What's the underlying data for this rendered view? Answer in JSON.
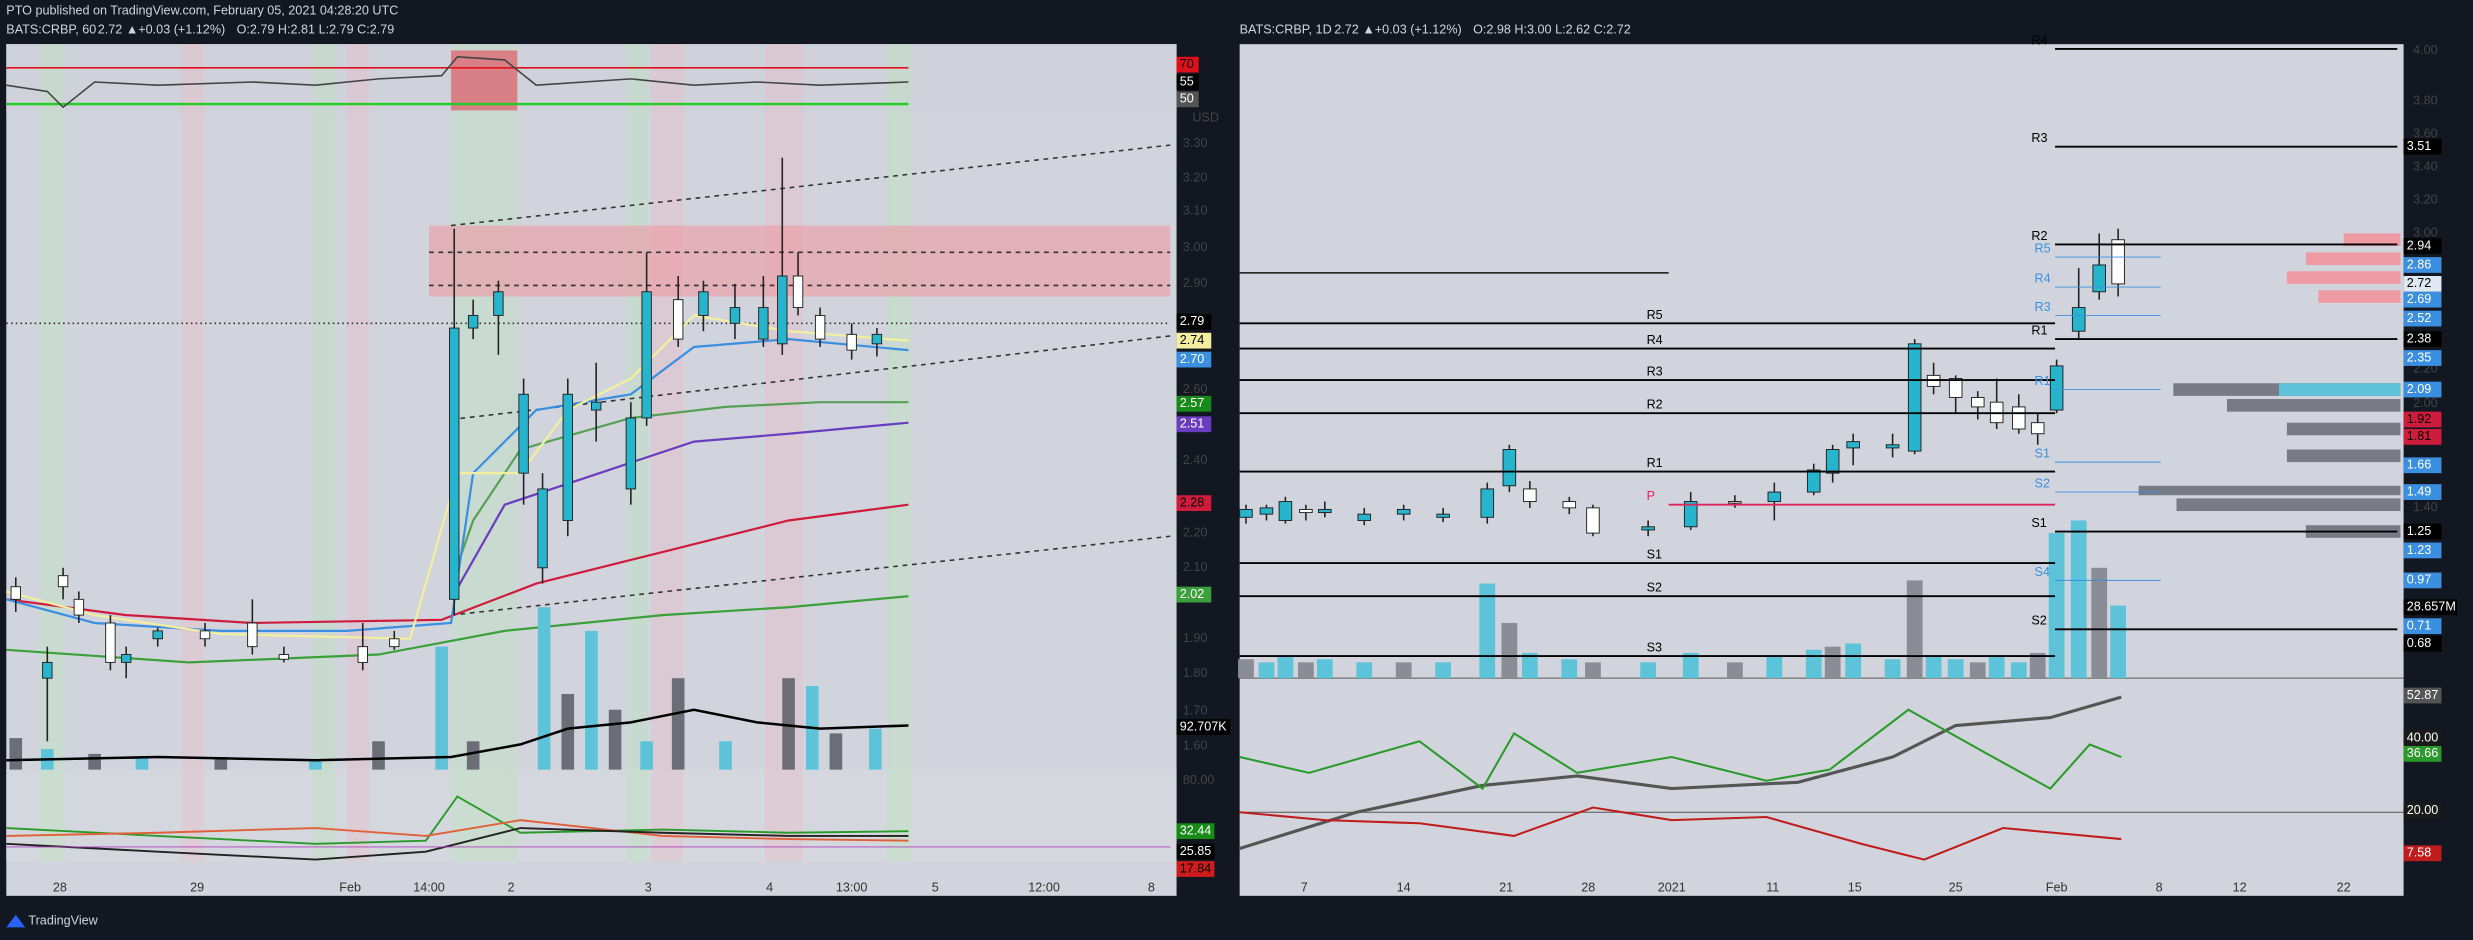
{
  "header": {
    "author_line": "PTO published on TradingView.com, February 05, 2021 04:28:20 UTC"
  },
  "left": {
    "symbol": "BATS:CRBP, 60",
    "quote": "2.72 ▲+0.03 (+1.12%)",
    "ohlc": "O:2.79 H:2.81 L:2.79 C:2.79",
    "price_axis": [
      "3.30",
      "3.20",
      "3.10",
      "3.00",
      "2.90",
      "2.60",
      "2.40",
      "2.20",
      "2.10",
      "1.90",
      "1.80",
      "1.70",
      "1.60"
    ],
    "currency": "USD",
    "rsi_badges": [
      {
        "label": "70",
        "color": "#e0101a"
      },
      {
        "label": "55",
        "color": "#000000"
      },
      {
        "label": "50",
        "color": "#555555"
      }
    ],
    "price_badges": [
      {
        "label": "2.79",
        "color": "#000000"
      },
      {
        "label": "2.74",
        "color": "#f3ef9e"
      },
      {
        "label": "2.70",
        "color": "#3a8fe0"
      },
      {
        "label": "2.57",
        "color": "#178a17"
      },
      {
        "label": "2.51",
        "color": "#6a3cc0"
      },
      {
        "label": "2.28",
        "color": "#d01c3c"
      },
      {
        "label": "2.02",
        "color": "#3aa03a"
      }
    ],
    "volume_badge": "92.707K",
    "osc_axis": [
      "80.00"
    ],
    "osc_badges": [
      {
        "label": "32.44",
        "color": "#178a17"
      },
      {
        "label": "25.85",
        "color": "#000000"
      },
      {
        "label": "17.84",
        "color": "#d01c1c"
      }
    ],
    "time_axis": [
      "28",
      "29",
      "Feb",
      "14:00",
      "2",
      "3",
      "4",
      "13:00",
      "5",
      "12:00",
      "8"
    ]
  },
  "right": {
    "symbol": "BATS:CRBP, 1D",
    "quote": "2.72 ▲+0.03 (+1.12%)",
    "ohlc": "O:2.98 H:3.00 L:2.62 C:2.72",
    "price_axis": [
      "4.00",
      "3.80",
      "3.60",
      "3.40",
      "3.20",
      "3.00",
      "2.20",
      "2.00",
      "1.40"
    ],
    "price_badges": [
      {
        "label": "3.51",
        "color": "#000000"
      },
      {
        "label": "2.94",
        "color": "#000000"
      },
      {
        "label": "2.86",
        "color": "#3a8fe0"
      },
      {
        "label": "2.72",
        "color": "#dfe9f3"
      },
      {
        "label": "2.69",
        "color": "#3a8fe0"
      },
      {
        "label": "2.52",
        "color": "#3a8fe0"
      },
      {
        "label": "2.38",
        "color": "#000000"
      },
      {
        "label": "2.35",
        "color": "#3a8fe0"
      },
      {
        "label": "2.09",
        "color": "#3a8fe0"
      },
      {
        "label": "1.92",
        "color": "#d01c3c"
      },
      {
        "label": "1.81",
        "color": "#d01c3c"
      },
      {
        "label": "1.66",
        "color": "#3a8fe0"
      },
      {
        "label": "1.49",
        "color": "#3a8fe0"
      },
      {
        "label": "1.25",
        "color": "#000000"
      },
      {
        "label": "1.23",
        "color": "#3a8fe0"
      },
      {
        "label": "0.97",
        "color": "#3a8fe0"
      },
      {
        "label": "0.71",
        "color": "#3a8fe0"
      },
      {
        "label": "28.657M",
        "color": "#000000"
      },
      {
        "label": "0.68",
        "color": "#000000"
      }
    ],
    "pivots": [
      {
        "label": "R5",
        "color": "#000000"
      },
      {
        "label": "R4",
        "color": "#000000"
      },
      {
        "label": "R3",
        "color": "#000000"
      },
      {
        "label": "R2",
        "color": "#000000"
      },
      {
        "label": "R1",
        "color": "#000000"
      },
      {
        "label": "P",
        "color": "#e0245e"
      },
      {
        "label": "S1",
        "color": "#000000"
      },
      {
        "label": "S2",
        "color": "#000000"
      },
      {
        "label": "S3",
        "color": "#000000"
      },
      {
        "label": "R4",
        "color": "#000000"
      },
      {
        "label": "R3",
        "color": "#000000"
      },
      {
        "label": "R2",
        "color": "#000000"
      },
      {
        "label": "R5",
        "color": "#3a8fe0"
      },
      {
        "label": "R4",
        "color": "#3a8fe0"
      },
      {
        "label": "R3",
        "color": "#3a8fe0"
      },
      {
        "label": "R1",
        "color": "#000000"
      },
      {
        "label": "R1",
        "color": "#3a8fe0"
      },
      {
        "label": "S1",
        "color": "#3a8fe0"
      },
      {
        "label": "S2",
        "color": "#3a8fe0"
      },
      {
        "label": "S1",
        "color": "#000000"
      },
      {
        "label": "S4",
        "color": "#3a8fe0"
      },
      {
        "label": "S2",
        "color": "#000000"
      }
    ],
    "osc_badges": [
      {
        "label": "52.87",
        "color": "#555555"
      },
      {
        "label": "40.00",
        "color": "#1a1a1a"
      },
      {
        "label": "36.66",
        "color": "#2a9a2a"
      },
      {
        "label": "20.00",
        "color": "#1a1a1a"
      },
      {
        "label": "7.58",
        "color": "#c01c1c"
      }
    ],
    "time_axis": [
      "7",
      "14",
      "21",
      "28",
      "2021",
      "11",
      "15",
      "25",
      "Feb",
      "8",
      "12",
      "22"
    ]
  },
  "footer": {
    "brand": "TradingView"
  }
}
